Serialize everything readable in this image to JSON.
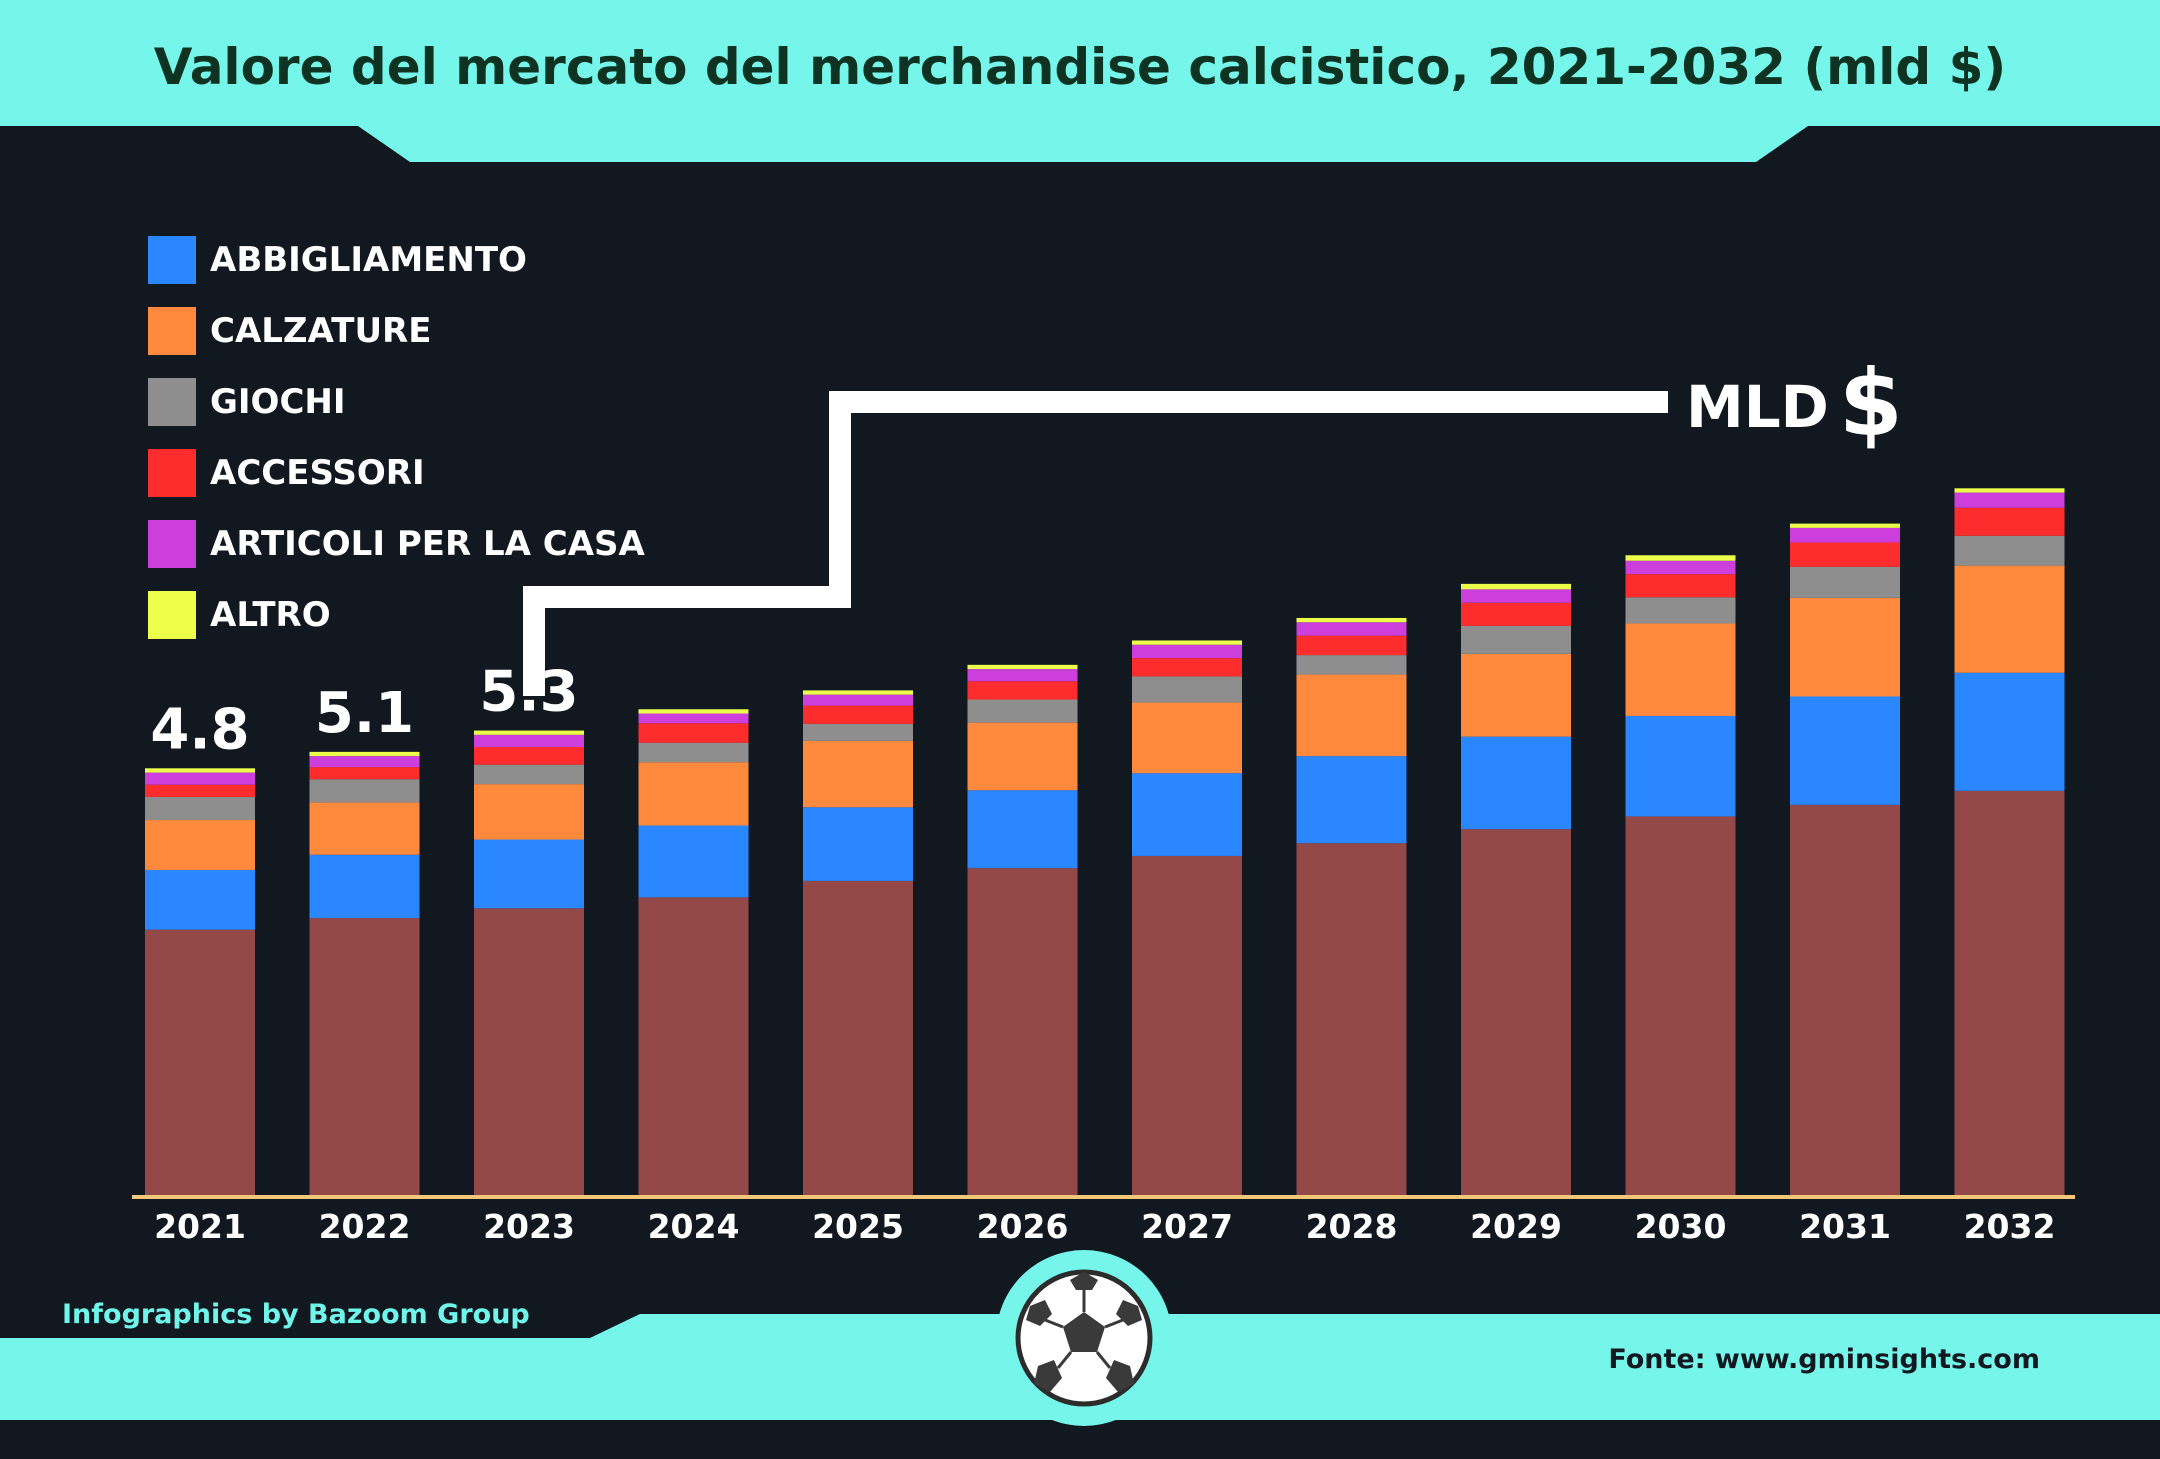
{
  "title": "Valore del mercato del merchandise calcistico, 2021-2032 (mld $)",
  "unit_callout": {
    "text": "MLD",
    "symbol": "$"
  },
  "credit": "Infographics by Bazoom Group",
  "source": "Fonte: www.gminsights.com",
  "colors": {
    "background": "#111820",
    "banner": "#76f6ea",
    "title": "#0f3322",
    "axis": "#f2c878",
    "text": "#ffffff"
  },
  "icons": {
    "footer": "soccer-ball-icon"
  },
  "chart_data": {
    "type": "bar",
    "stacked": true,
    "categories": [
      "2021",
      "2022",
      "2023",
      "2024",
      "2025",
      "2026",
      "2027",
      "2028",
      "2029",
      "2030",
      "2031",
      "2032"
    ],
    "ylim": [
      0,
      11.5
    ],
    "grid": false,
    "legend_position": "top-left",
    "series": [
      {
        "color": "#954848",
        "values": [
          4.36,
          4.55,
          4.71,
          4.89,
          5.16,
          5.37,
          5.57,
          5.78,
          6.01,
          6.22,
          6.41,
          6.64
        ]
      },
      {
        "name": "ABBIGLIAMENTO",
        "color": "#2a87ff",
        "values": [
          0.98,
          1.04,
          1.13,
          1.18,
          1.21,
          1.28,
          1.36,
          1.43,
          1.52,
          1.65,
          1.78,
          1.94
        ]
      },
      {
        "name": "CALZATURE",
        "color": "#ff8a3d",
        "values": [
          0.82,
          0.86,
          0.91,
          1.04,
          1.09,
          1.11,
          1.16,
          1.34,
          1.36,
          1.52,
          1.62,
          1.76
        ]
      },
      {
        "name": "GIOCHI",
        "color": "#8e8e8e",
        "values": [
          0.38,
          0.38,
          0.32,
          0.32,
          0.28,
          0.38,
          0.43,
          0.32,
          0.46,
          0.43,
          0.51,
          0.49
        ]
      },
      {
        "name": "ACCESSORI",
        "color": "#fe2d2d",
        "values": [
          0.2,
          0.2,
          0.29,
          0.32,
          0.3,
          0.3,
          0.3,
          0.32,
          0.38,
          0.38,
          0.4,
          0.46
        ]
      },
      {
        "name": "ARTICOLI PER LA CASA",
        "color": "#cc3fdd",
        "values": [
          0.2,
          0.18,
          0.2,
          0.16,
          0.18,
          0.2,
          0.22,
          0.22,
          0.22,
          0.22,
          0.24,
          0.25
        ]
      },
      {
        "name": "ALTRO",
        "color": "#ecfd4a",
        "values": [
          0.07,
          0.07,
          0.07,
          0.07,
          0.07,
          0.07,
          0.07,
          0.07,
          0.09,
          0.09,
          0.07,
          0.07
        ]
      }
    ],
    "annotations": [
      {
        "category": "2021",
        "text": "4.8"
      },
      {
        "category": "2022",
        "text": "5.1"
      },
      {
        "category": "2023",
        "text": "5.3"
      }
    ]
  }
}
